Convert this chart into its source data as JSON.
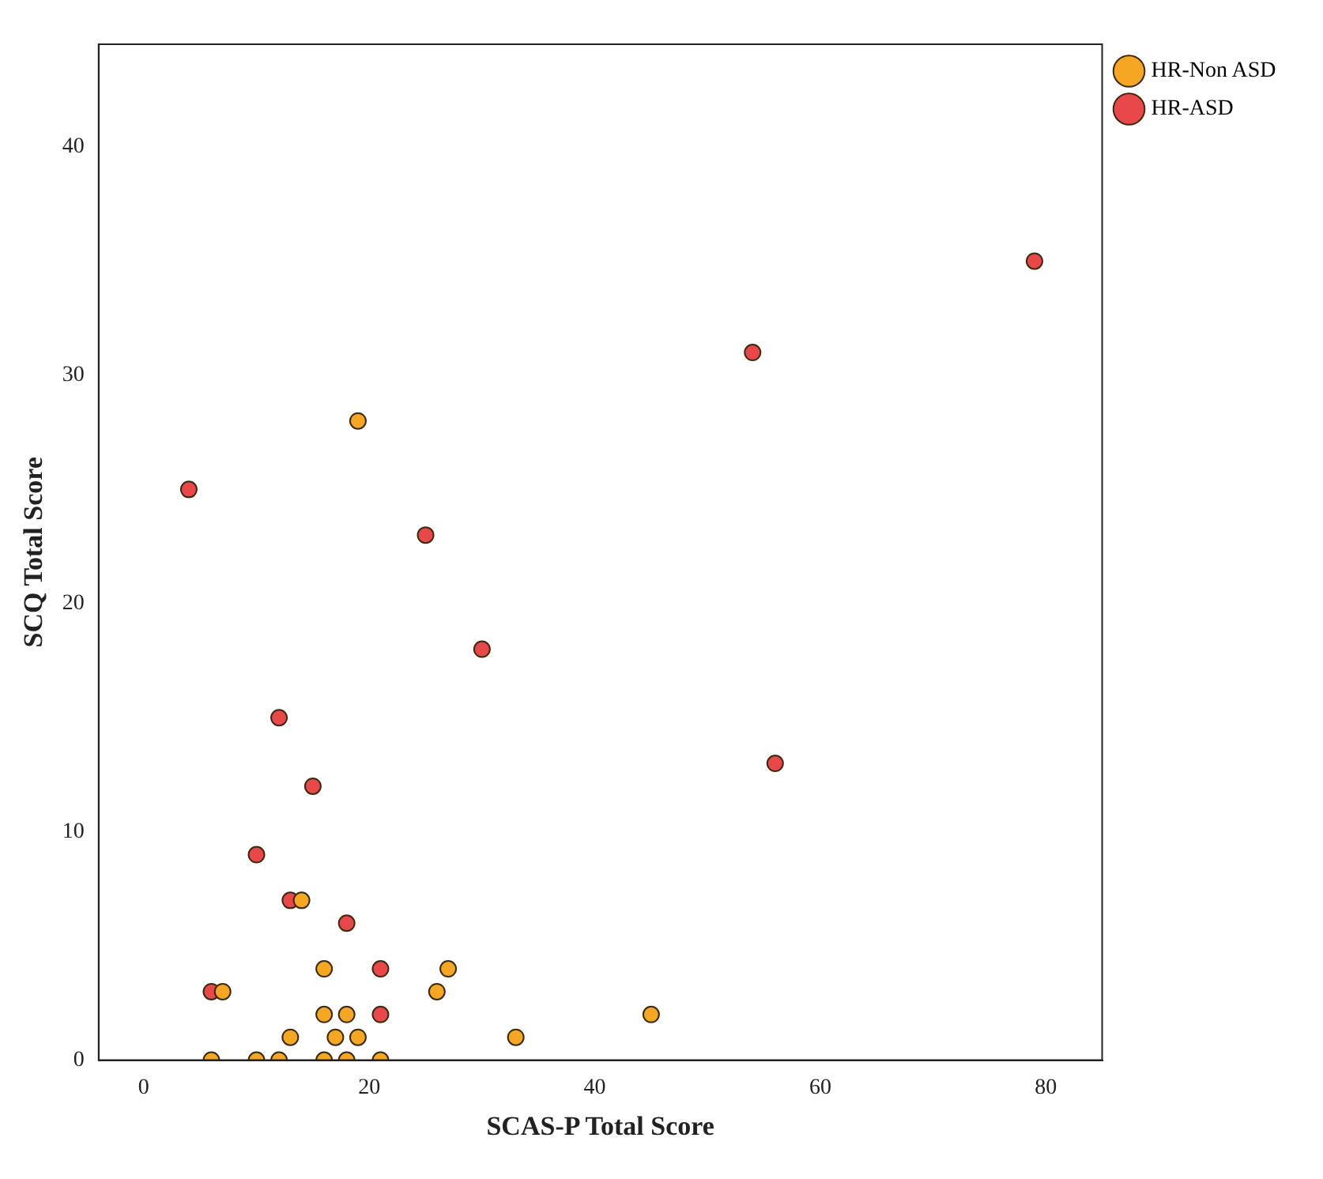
{
  "chart_data": {
    "type": "scatter",
    "xlabel": "SCAS-P Total Score",
    "ylabel": "SCQ Total Score",
    "xlim": [
      -4,
      85
    ],
    "ylim": [
      0,
      44.5
    ],
    "xticks": [
      0,
      20,
      40,
      60,
      80
    ],
    "yticks": [
      0,
      10,
      20,
      30,
      40
    ],
    "grid": false,
    "legend": "right",
    "marker": "circle",
    "series": [
      {
        "name": "HR-Non ASD",
        "color": "#f5a623",
        "x": [
          14,
          16,
          27,
          7,
          26,
          16,
          18,
          13,
          17,
          19,
          33,
          6,
          10,
          12,
          16,
          18,
          21,
          45,
          19
        ],
        "values": [
          7,
          4,
          4,
          3,
          3,
          2,
          2,
          1,
          1,
          1,
          1,
          0,
          0,
          0,
          0,
          0,
          0,
          2,
          28
        ]
      },
      {
        "name": "HR-ASD",
        "color": "#e8484a",
        "x": [
          13,
          18,
          21,
          6,
          21,
          4,
          12,
          15,
          10,
          25,
          30,
          54,
          79,
          56
        ],
        "values": [
          7,
          6,
          4,
          3,
          2,
          25,
          15,
          12,
          9,
          23,
          18,
          31,
          35,
          13
        ]
      }
    ]
  }
}
